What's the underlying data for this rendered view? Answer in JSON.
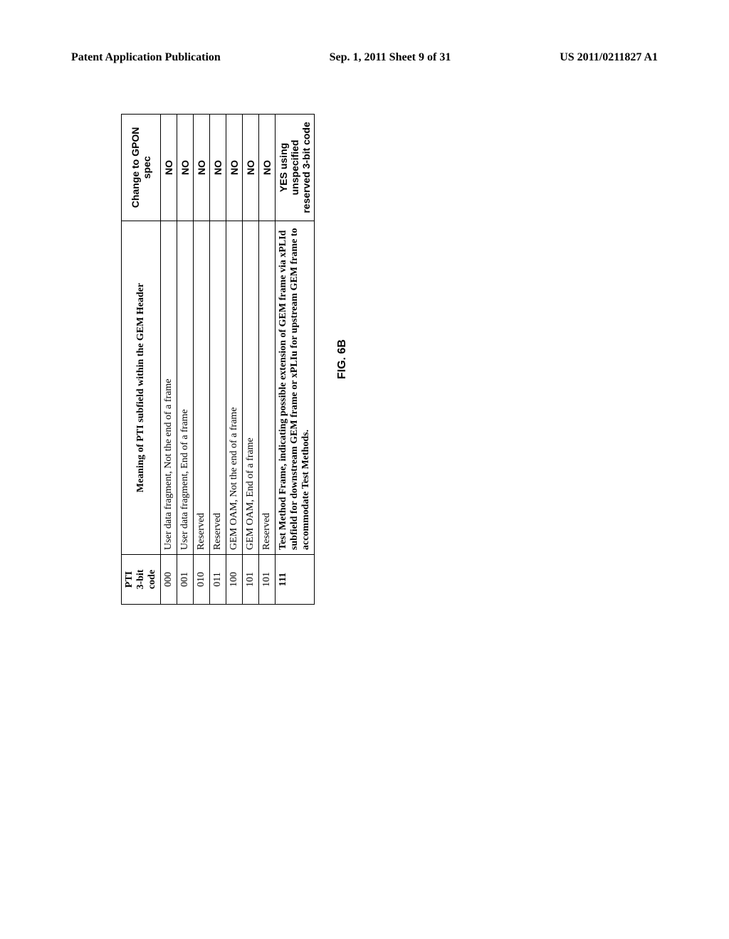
{
  "header": {
    "left": "Patent Application Publication",
    "center": "Sep. 1, 2011  Sheet 9 of 31",
    "right": "US 2011/0211827 A1"
  },
  "table": {
    "head": {
      "col1_line1": "PTI",
      "col1_line2": "3-bit code",
      "col2": "Meaning of PTI subfield within the GEM Header",
      "col3": "Change to GPON spec"
    },
    "rows": [
      {
        "code": "000",
        "meaning": "User data fragment, Not the end of a frame",
        "change": "NO",
        "bold": false
      },
      {
        "code": "001",
        "meaning": "User data fragment, End of a frame",
        "change": "NO",
        "bold": false
      },
      {
        "code": "010",
        "meaning": "Reserved",
        "change": "NO",
        "bold": false
      },
      {
        "code": "011",
        "meaning": "Reserved",
        "change": "NO",
        "bold": false
      },
      {
        "code": "100",
        "meaning": "GEM OAM, Not the end of a frame",
        "change": "NO",
        "bold": false
      },
      {
        "code": "101",
        "meaning": "GEM OAM, End of a frame",
        "change": "NO",
        "bold": false
      },
      {
        "code": "101",
        "meaning": "Reserved",
        "change": "NO",
        "bold": false
      },
      {
        "code": "111",
        "meaning": "Test Method Frame, indicating possible extension of GEM frame via xPLId subfield for downstream GEM frame or xPLIu for upstream GEM frame to accommodate Test Methods.",
        "change": "YES using unspecified reserved 3-bit code",
        "bold": true
      }
    ],
    "figure_label": "FIG. 6B"
  },
  "styles": {
    "page_bg": "#ffffff",
    "border_color": "#000000",
    "header_fontsize": 16,
    "table_fontsize": 14
  }
}
